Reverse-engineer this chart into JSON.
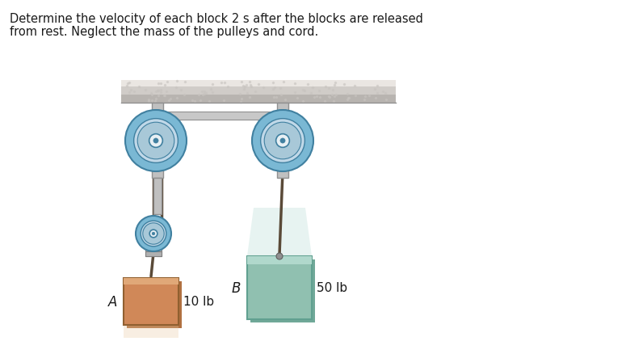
{
  "title_line1": "Determine the velocity of each block 2 s after the blocks are released",
  "title_line2": "from rest. Neglect the mass of the pulleys and cord.",
  "label_A": "A",
  "label_B": "B",
  "weight_A": "10 lb",
  "weight_B": "50 lb",
  "bg_color": "#ffffff",
  "ceiling_top_color": "#e8e4e0",
  "ceiling_mid_color": "#d0ccc8",
  "ceiling_bot_color": "#b8b4b0",
  "support_color": "#c0c0c0",
  "support_edge_color": "#909090",
  "pulley_rim_color": "#7ab8d4",
  "pulley_face_color": "#c0d8e8",
  "pulley_hub_color": "#e8f0f4",
  "pulley_edge_color": "#4080a0",
  "rope_color": "#5a4a38",
  "block_A_face": "#d08858",
  "block_A_edge": "#906030",
  "block_A_shadow": "#b07040",
  "block_B_face": "#90c0b0",
  "block_B_edge": "#60a090",
  "block_B_shadow": "#70a898",
  "block_B_glow": "#d0e8e4",
  "bracket_color": "#a0a0a0",
  "text_color": "#1a1a1a",
  "title_fontsize": 10.5,
  "label_fontsize": 11
}
